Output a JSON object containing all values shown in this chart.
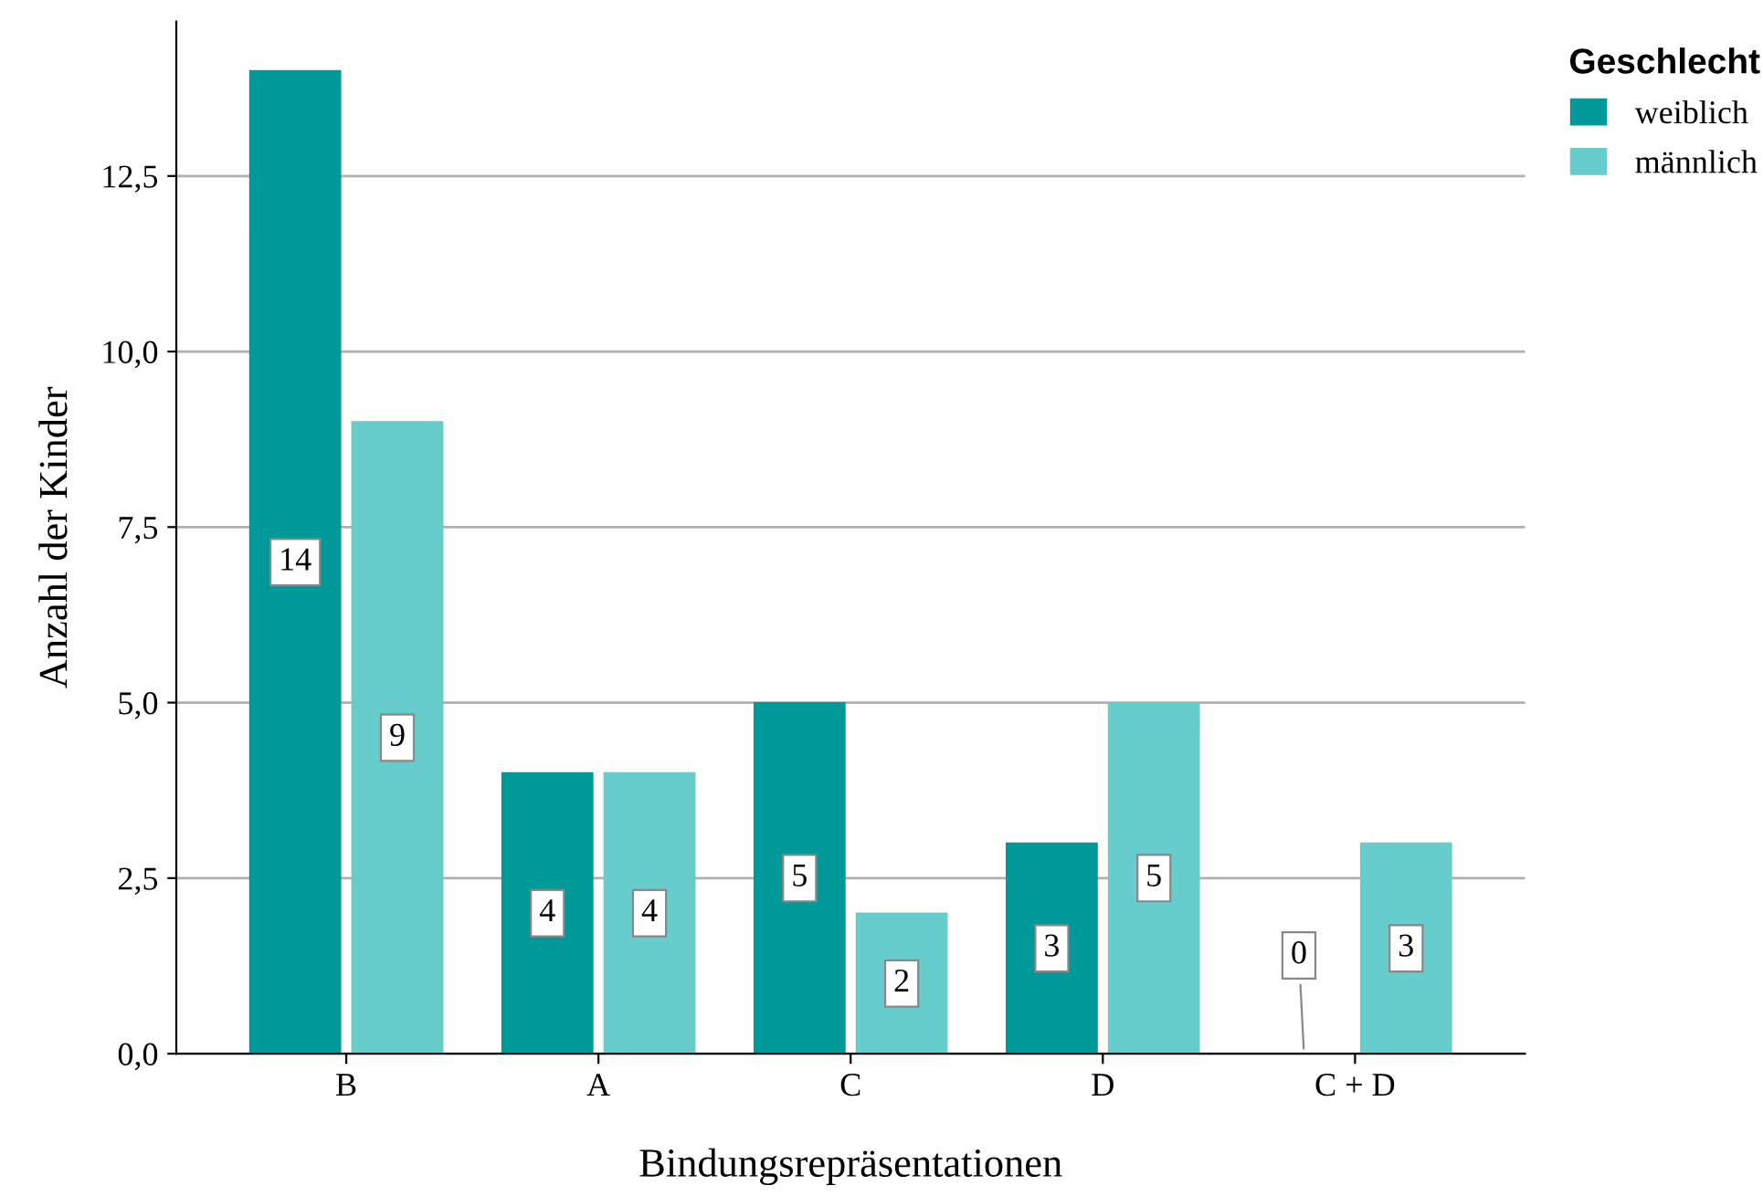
{
  "chart_data": {
    "type": "bar",
    "xlabel": "Bindungsrepräsentationen",
    "ylabel": "Anzahl der Kinder",
    "legend_title": "Geschlecht",
    "categories": [
      "B",
      "A",
      "C",
      "D",
      "C + D"
    ],
    "series": [
      {
        "name": "weiblich",
        "color": "#009999",
        "values": [
          14,
          4,
          5,
          3,
          0
        ]
      },
      {
        "name": "männlich",
        "color": "#66cccc",
        "values": [
          9,
          4,
          2,
          5,
          3
        ]
      }
    ],
    "ylim": [
      0,
      14.7
    ],
    "yticks": [
      {
        "value": 0,
        "label": "0,0"
      },
      {
        "value": 2.5,
        "label": "2,5"
      },
      {
        "value": 5,
        "label": "5,0"
      },
      {
        "value": 7.5,
        "label": "7,5"
      },
      {
        "value": 10,
        "label": "10,0"
      },
      {
        "value": 12.5,
        "label": "12,5"
      }
    ],
    "grid": "y",
    "legend": "top right",
    "data_labels": true
  }
}
